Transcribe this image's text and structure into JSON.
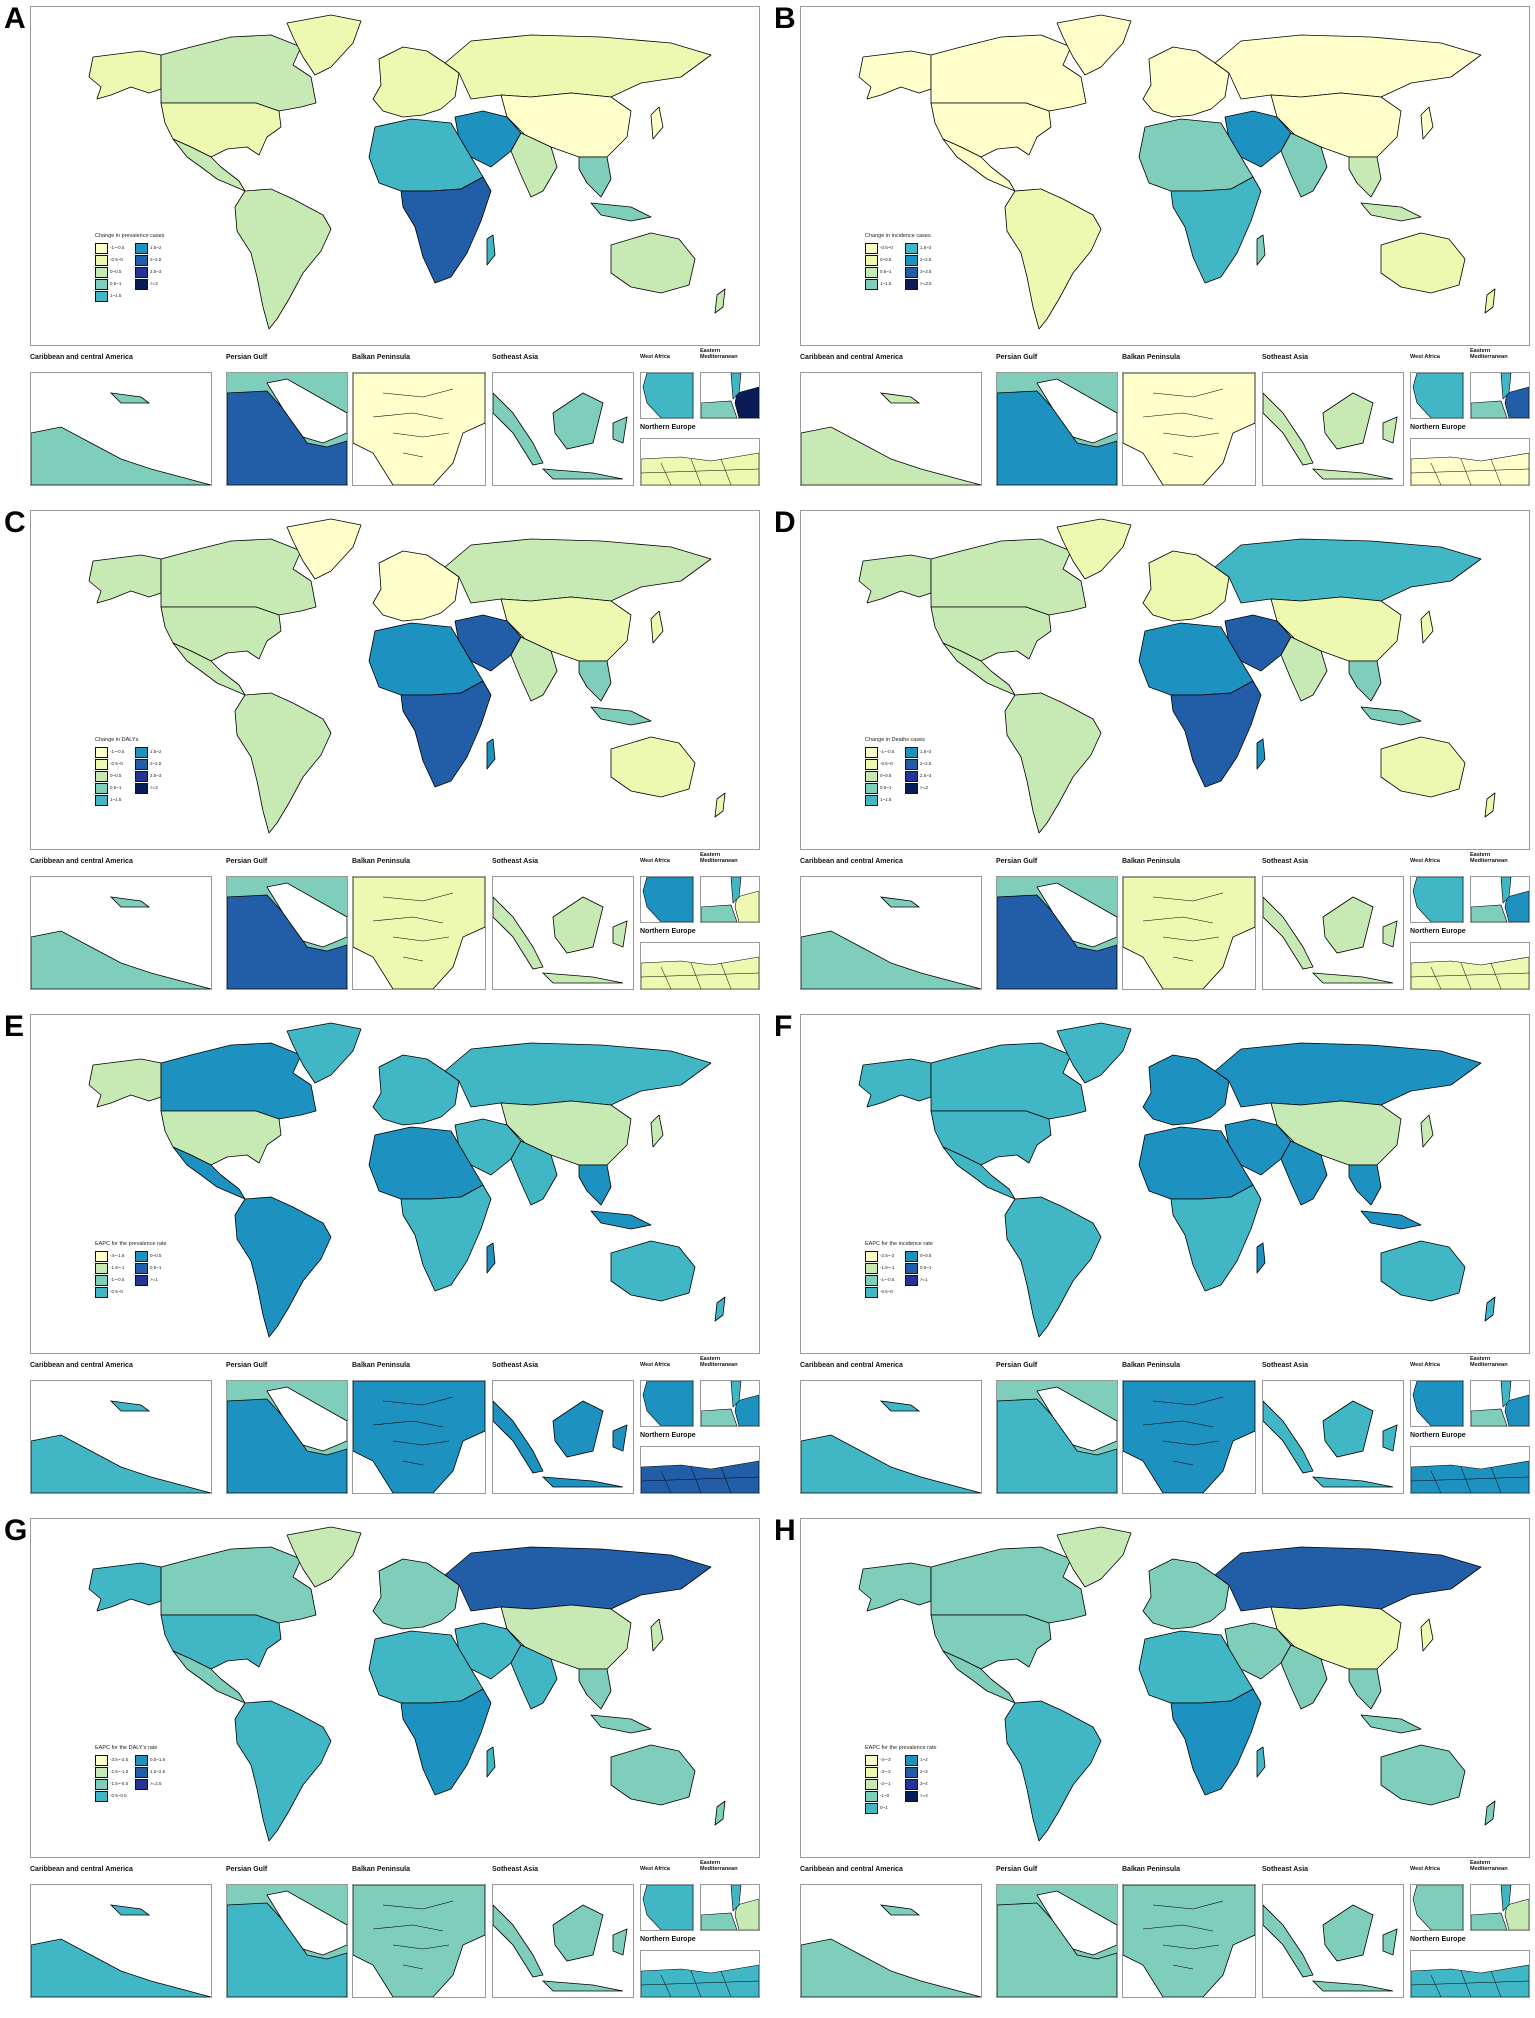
{
  "palette": {
    "c1": "#ffffcc",
    "c2": "#edf8b1",
    "c3": "#c7e9b4",
    "c4": "#7fcdbb",
    "c5": "#41b6c4",
    "c6": "#1d91c0",
    "c7": "#225ea8",
    "c8": "#253494",
    "c9": "#081d58",
    "border": "#000000",
    "frame": "#9a9a9a"
  },
  "inset_labels": {
    "caribbean": "Caribbean and central America",
    "persian_gulf": "Persian Gulf",
    "balkan": "Balkan Peninsula",
    "se_asia": "Sotheast Asia",
    "west_africa": "West Africa",
    "east_med_1": "Eastern",
    "east_med_2": "Mediterranean",
    "northern_europe": "Northern Europe"
  },
  "panels": [
    {
      "letter": "A",
      "legend_title": "Change in prevalence cases",
      "legend": [
        {
          "label": "-1~-0.5",
          "color": "#ffffcc"
        },
        {
          "label": "-0.5~0",
          "color": "#edf8b1"
        },
        {
          "label": "0~0.5",
          "color": "#c7e9b4"
        },
        {
          "label": "0.5~1",
          "color": "#7fcdbb"
        },
        {
          "label": "1~1.5",
          "color": "#41b6c4"
        },
        {
          "label": "1.5~2",
          "color": "#1d91c0"
        },
        {
          "label": "2~2.5",
          "color": "#225ea8"
        },
        {
          "label": "2.5~3",
          "color": "#253494"
        },
        {
          "label": ">=3",
          "color": "#081d58"
        }
      ],
      "fills": {
        "na": "#c7e9b4",
        "usa": "#edf8b1",
        "greenland": "#edf8b1",
        "sa": "#c7e9b4",
        "europe": "#edf8b1",
        "russia": "#edf8b1",
        "africa": "#41b6c4",
        "africa2": "#225ea8",
        "mideast": "#1d91c0",
        "asia": "#ffffcc",
        "india": "#c7e9b4",
        "sea": "#7fcdbb",
        "aus": "#c7e9b4"
      },
      "insets": {
        "caribbean": "#7fcdbb",
        "persian_gulf": "#225ea8",
        "balkan": "#ffffcc",
        "se_asia": "#7fcdbb",
        "west_africa": "#41b6c4",
        "east_med": "#081d58",
        "northern_europe": "#edf8b1"
      }
    },
    {
      "letter": "B",
      "legend_title": "Change in incidence cases",
      "legend": [
        {
          "label": "-0.5~0",
          "color": "#ffffcc"
        },
        {
          "label": "0~0.5",
          "color": "#edf8b1"
        },
        {
          "label": "0.5~1",
          "color": "#c7e9b4"
        },
        {
          "label": "1~1.5",
          "color": "#7fcdbb"
        },
        {
          "label": "1.5~2",
          "color": "#41b6c4"
        },
        {
          "label": "2~2.5",
          "color": "#1d91c0"
        },
        {
          "label": "3~3.5",
          "color": "#225ea8"
        },
        {
          "label": ">=3.5",
          "color": "#081d58"
        }
      ],
      "fills": {
        "na": "#ffffcc",
        "usa": "#ffffcc",
        "greenland": "#ffffcc",
        "sa": "#edf8b1",
        "europe": "#ffffcc",
        "russia": "#ffffcc",
        "africa": "#7fcdbb",
        "africa2": "#41b6c4",
        "mideast": "#1d91c0",
        "asia": "#ffffcc",
        "india": "#7fcdbb",
        "sea": "#c7e9b4",
        "aus": "#edf8b1"
      },
      "insets": {
        "caribbean": "#c7e9b4",
        "persian_gulf": "#1d91c0",
        "balkan": "#ffffcc",
        "se_asia": "#c7e9b4",
        "west_africa": "#41b6c4",
        "east_med": "#225ea8",
        "northern_europe": "#ffffcc"
      }
    },
    {
      "letter": "C",
      "legend_title": "Change in DALYs",
      "legend": [
        {
          "label": "-1~-0.5",
          "color": "#ffffcc"
        },
        {
          "label": "-0.5~0",
          "color": "#edf8b1"
        },
        {
          "label": "0~0.5",
          "color": "#c7e9b4"
        },
        {
          "label": "0.5~1",
          "color": "#7fcdbb"
        },
        {
          "label": "1~1.5",
          "color": "#41b6c4"
        },
        {
          "label": "1.5~2",
          "color": "#1d91c0"
        },
        {
          "label": "2~2.5",
          "color": "#225ea8"
        },
        {
          "label": "2.5~3",
          "color": "#253494"
        },
        {
          "label": ">=3",
          "color": "#081d58"
        }
      ],
      "fills": {
        "na": "#c7e9b4",
        "usa": "#c7e9b4",
        "greenland": "#ffffcc",
        "sa": "#c7e9b4",
        "europe": "#ffffcc",
        "russia": "#c7e9b4",
        "africa": "#1d91c0",
        "africa2": "#225ea8",
        "mideast": "#225ea8",
        "asia": "#edf8b1",
        "india": "#c7e9b4",
        "sea": "#7fcdbb",
        "aus": "#edf8b1"
      },
      "insets": {
        "caribbean": "#7fcdbb",
        "persian_gulf": "#225ea8",
        "balkan": "#edf8b1",
        "se_asia": "#c7e9b4",
        "west_africa": "#1d91c0",
        "east_med": "#edf8b1",
        "northern_europe": "#edf8b1"
      }
    },
    {
      "letter": "D",
      "legend_title": "Change in Deaths cases",
      "legend": [
        {
          "label": "-1~-0.5",
          "color": "#ffffcc"
        },
        {
          "label": "-0.5~0",
          "color": "#edf8b1"
        },
        {
          "label": "0~0.5",
          "color": "#c7e9b4"
        },
        {
          "label": "0.5~1",
          "color": "#7fcdbb"
        },
        {
          "label": "1~1.5",
          "color": "#41b6c4"
        },
        {
          "label": "1.5~2",
          "color": "#1d91c0"
        },
        {
          "label": "2~2.5",
          "color": "#225ea8"
        },
        {
          "label": "2.5~3",
          "color": "#253494"
        },
        {
          "label": ">=3",
          "color": "#081d58"
        }
      ],
      "fills": {
        "na": "#c7e9b4",
        "usa": "#c7e9b4",
        "greenland": "#edf8b1",
        "sa": "#c7e9b4",
        "europe": "#edf8b1",
        "russia": "#41b6c4",
        "africa": "#1d91c0",
        "africa2": "#225ea8",
        "mideast": "#225ea8",
        "asia": "#edf8b1",
        "india": "#c7e9b4",
        "sea": "#7fcdbb",
        "aus": "#edf8b1"
      },
      "insets": {
        "caribbean": "#7fcdbb",
        "persian_gulf": "#225ea8",
        "balkan": "#edf8b1",
        "se_asia": "#c7e9b4",
        "west_africa": "#41b6c4",
        "east_med": "#1d91c0",
        "northern_europe": "#edf8b1"
      }
    },
    {
      "letter": "E",
      "legend_title": "EAPC for the prevalence rate",
      "legend": [
        {
          "label": "-4~-1.5",
          "color": "#ffffcc"
        },
        {
          "label": "-1.5~-1",
          "color": "#c7e9b4"
        },
        {
          "label": "-1~-0.5",
          "color": "#7fcdbb"
        },
        {
          "label": "-0.5~0",
          "color": "#41b6c4"
        },
        {
          "label": "0~0.5",
          "color": "#1d91c0"
        },
        {
          "label": "0.5~1",
          "color": "#225ea8"
        },
        {
          "label": ">=1",
          "color": "#253494"
        }
      ],
      "fills": {
        "na": "#1d91c0",
        "usa": "#c7e9b4",
        "greenland": "#41b6c4",
        "sa": "#1d91c0",
        "europe": "#41b6c4",
        "russia": "#41b6c4",
        "africa": "#1d91c0",
        "africa2": "#41b6c4",
        "mideast": "#41b6c4",
        "asia": "#c7e9b4",
        "india": "#41b6c4",
        "sea": "#1d91c0",
        "aus": "#41b6c4"
      },
      "insets": {
        "caribbean": "#41b6c4",
        "persian_gulf": "#1d91c0",
        "balkan": "#1d91c0",
        "se_asia": "#1d91c0",
        "west_africa": "#1d91c0",
        "east_med": "#1d91c0",
        "northern_europe": "#225ea8"
      }
    },
    {
      "letter": "F",
      "legend_title": "EAPC for the incidence rate",
      "legend": [
        {
          "label": "-2.5~-2",
          "color": "#ffffcc"
        },
        {
          "label": "-1.5~-1",
          "color": "#c7e9b4"
        },
        {
          "label": "-1~-0.5",
          "color": "#7fcdbb"
        },
        {
          "label": "-0.5~0",
          "color": "#41b6c4"
        },
        {
          "label": "0~0.5",
          "color": "#1d91c0"
        },
        {
          "label": "0.5~1",
          "color": "#225ea8"
        },
        {
          "label": ">=1",
          "color": "#253494"
        }
      ],
      "fills": {
        "na": "#41b6c4",
        "usa": "#41b6c4",
        "greenland": "#41b6c4",
        "sa": "#41b6c4",
        "europe": "#1d91c0",
        "russia": "#1d91c0",
        "africa": "#1d91c0",
        "africa2": "#41b6c4",
        "mideast": "#1d91c0",
        "asia": "#c7e9b4",
        "india": "#1d91c0",
        "sea": "#1d91c0",
        "aus": "#41b6c4"
      },
      "insets": {
        "caribbean": "#41b6c4",
        "persian_gulf": "#41b6c4",
        "balkan": "#1d91c0",
        "se_asia": "#41b6c4",
        "west_africa": "#1d91c0",
        "east_med": "#1d91c0",
        "northern_europe": "#1d91c0"
      }
    },
    {
      "letter": "G",
      "legend_title": "EAPC for the DALY's rate",
      "legend": [
        {
          "label": "-3.5~-2.5",
          "color": "#ffffcc"
        },
        {
          "label": "-2.5~-1.5",
          "color": "#c7e9b4"
        },
        {
          "label": "-1.5~-0.5",
          "color": "#7fcdbb"
        },
        {
          "label": "-0.5~0.5",
          "color": "#41b6c4"
        },
        {
          "label": "0.5~1.5",
          "color": "#1d91c0"
        },
        {
          "label": "1.5~2.5",
          "color": "#225ea8"
        },
        {
          "label": ">=2.5",
          "color": "#253494"
        }
      ],
      "fills": {
        "na": "#7fcdbb",
        "usa": "#41b6c4",
        "greenland": "#c7e9b4",
        "sa": "#41b6c4",
        "europe": "#7fcdbb",
        "russia": "#225ea8",
        "africa": "#41b6c4",
        "africa2": "#1d91c0",
        "mideast": "#41b6c4",
        "asia": "#c7e9b4",
        "india": "#41b6c4",
        "sea": "#7fcdbb",
        "aus": "#7fcdbb"
      },
      "insets": {
        "caribbean": "#41b6c4",
        "persian_gulf": "#41b6c4",
        "balkan": "#7fcdbb",
        "se_asia": "#7fcdbb",
        "west_africa": "#41b6c4",
        "east_med": "#c7e9b4",
        "northern_europe": "#41b6c4"
      }
    },
    {
      "letter": "H",
      "legend_title": "EAPC for the prevalence rate",
      "legend": [
        {
          "label": "-4~-3",
          "color": "#ffffcc"
        },
        {
          "label": "-3~-2",
          "color": "#edf8b1"
        },
        {
          "label": "-2~-1",
          "color": "#c7e9b4"
        },
        {
          "label": "-1~0",
          "color": "#7fcdbb"
        },
        {
          "label": "0~1",
          "color": "#41b6c4"
        },
        {
          "label": "1~2",
          "color": "#1d91c0"
        },
        {
          "label": "2~3",
          "color": "#225ea8"
        },
        {
          "label": "3~4",
          "color": "#253494"
        },
        {
          "label": ">=4",
          "color": "#081d58"
        }
      ],
      "fills": {
        "na": "#7fcdbb",
        "usa": "#7fcdbb",
        "greenland": "#c7e9b4",
        "sa": "#41b6c4",
        "europe": "#7fcdbb",
        "russia": "#225ea8",
        "africa": "#41b6c4",
        "africa2": "#1d91c0",
        "mideast": "#7fcdbb",
        "asia": "#edf8b1",
        "india": "#7fcdbb",
        "sea": "#7fcdbb",
        "aus": "#7fcdbb"
      },
      "insets": {
        "caribbean": "#7fcdbb",
        "persian_gulf": "#7fcdbb",
        "balkan": "#7fcdbb",
        "se_asia": "#7fcdbb",
        "west_africa": "#7fcdbb",
        "east_med": "#c7e9b4",
        "northern_europe": "#41b6c4"
      }
    }
  ]
}
